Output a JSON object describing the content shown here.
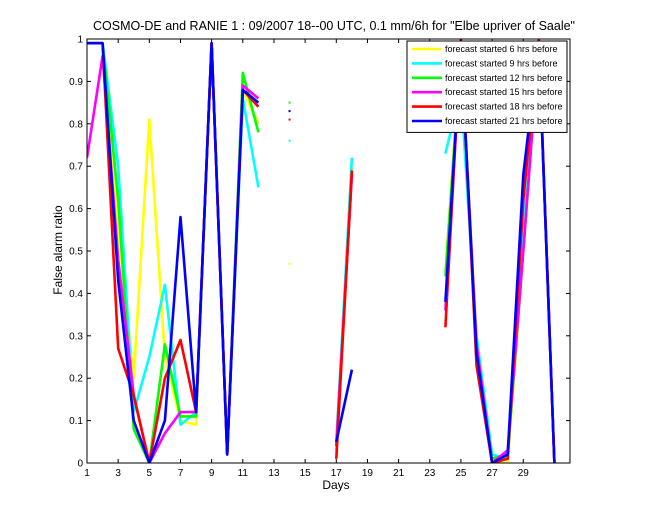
{
  "chart_data": {
    "type": "line",
    "title": "COSMO-DE and RANIE 1 : 09/2007 18--00 UTC, 0.1 mm/6h for \"Elbe upriver of Saale\"",
    "xlabel": "Days",
    "ylabel": "False alarm ratio",
    "xlim": [
      1,
      32
    ],
    "ylim": [
      0,
      1
    ],
    "xticks": [
      1,
      3,
      5,
      7,
      9,
      11,
      13,
      15,
      17,
      19,
      21,
      23,
      25,
      27,
      29
    ],
    "yticks": [
      0,
      0.1,
      0.2,
      0.3,
      0.4,
      0.5,
      0.6,
      0.7,
      0.8,
      0.9,
      1
    ],
    "ytick_labels": [
      "0",
      "0.1",
      "0.2",
      "0.3",
      "0.4",
      "0.5",
      "0.6",
      "0.7",
      "0.8",
      "0.9",
      "1"
    ],
    "grid": false,
    "legend_position": "top-right",
    "series": [
      {
        "name": "forecast started 6 hrs before",
        "color": "#ffff00",
        "values": [
          0.99,
          0.99,
          0.55,
          0.2,
          0.81,
          0.25,
          0.1,
          0.09,
          0.99,
          0.02,
          0.88,
          0.8,
          null,
          0.47,
          null,
          null,
          0.03,
          0.7,
          null,
          null,
          null,
          null,
          null,
          0.45,
          0.99,
          0.3,
          0.0,
          0.0,
          0.5,
          0.99,
          0.0
        ]
      },
      {
        "name": "forecast started 9 hrs before",
        "color": "#00ffff",
        "values": [
          0.99,
          0.99,
          0.7,
          0.12,
          0.25,
          0.42,
          0.09,
          0.12,
          0.99,
          0.02,
          0.86,
          0.65,
          null,
          0.76,
          null,
          null,
          0.05,
          0.72,
          null,
          null,
          null,
          null,
          null,
          0.73,
          0.88,
          0.3,
          0.02,
          0.01,
          0.55,
          0.99,
          0.0
        ]
      },
      {
        "name": "forecast started 12 hrs before",
        "color": "#00ff00",
        "values": [
          0.99,
          0.99,
          0.62,
          0.08,
          0.0,
          0.28,
          0.11,
          0.11,
          0.99,
          0.02,
          0.92,
          0.78,
          null,
          0.85,
          null,
          null,
          0.04,
          0.68,
          null,
          null,
          null,
          null,
          null,
          0.44,
          0.97,
          0.27,
          0.01,
          0.02,
          0.5,
          0.99,
          0.0
        ]
      },
      {
        "name": "forecast started 15 hrs before",
        "color": "#ff00ff",
        "values": [
          0.72,
          0.96,
          0.48,
          0.16,
          0.0,
          0.07,
          0.12,
          0.12,
          0.99,
          0.02,
          0.89,
          0.86,
          null,
          0.83,
          null,
          null,
          0.04,
          0.68,
          null,
          null,
          null,
          null,
          null,
          0.36,
          0.98,
          0.28,
          0.0,
          0.03,
          0.5,
          0.99,
          0.0
        ]
      },
      {
        "name": "forecast started 18 hrs before",
        "color": "#ff0000",
        "values": [
          0.99,
          0.99,
          0.27,
          0.16,
          0.0,
          0.2,
          0.29,
          0.12,
          0.99,
          0.02,
          0.88,
          0.84,
          null,
          0.81,
          null,
          null,
          0.01,
          0.69,
          null,
          null,
          null,
          null,
          null,
          0.32,
          1.0,
          0.23,
          0.0,
          0.01,
          0.62,
          1.0,
          0.0
        ]
      },
      {
        "name": "forecast started 21 hrs before",
        "color": "#0000ff",
        "values": [
          0.99,
          0.99,
          0.43,
          0.1,
          0.0,
          0.1,
          0.58,
          0.12,
          0.99,
          0.02,
          0.88,
          0.85,
          null,
          0.83,
          null,
          null,
          0.05,
          0.22,
          null,
          null,
          null,
          null,
          null,
          0.38,
          0.99,
          0.26,
          0.0,
          0.02,
          0.68,
          0.99,
          0.0
        ]
      }
    ]
  }
}
